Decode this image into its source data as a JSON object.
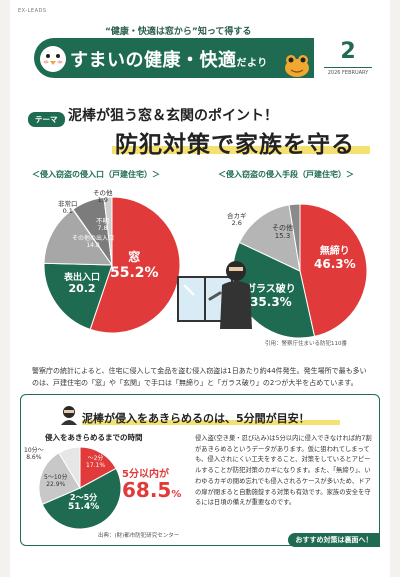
{
  "header": {
    "brand": "EX-LEADS",
    "subtitle": "“健康・快適は窓から”知って得する",
    "title_main": "すまいの健康・快適",
    "title_suffix": "だより",
    "issue_number": "2",
    "issue_date": "2026 FEBRUARY",
    "colors": {
      "green": "#1e6b52",
      "red": "#e03a3a",
      "yellow": "#f2d94e"
    }
  },
  "theme": {
    "badge": "テーマ",
    "headline": "泥棒が狙う窓＆玄関のポイント！",
    "main_title": "防犯対策で家族を守る"
  },
  "chart_data": [
    {
      "type": "pie",
      "title": "＜侵入窃盗の侵入口（戸建住宅）＞",
      "categories": [
        "窓",
        "表出入口",
        "その他の出入口",
        "非常口",
        "不明",
        "その他"
      ],
      "values": [
        55.2,
        20.2,
        14.8,
        0.1,
        7.8,
        1.9
      ]
    },
    {
      "type": "pie",
      "title": "＜侵入窃盗の侵入手段（戸建住宅）＞",
      "categories": [
        "無締り",
        "ガラス破り",
        "その他",
        "合カギ"
      ],
      "values": [
        46.3,
        35.3,
        15.3,
        2.6
      ]
    },
    {
      "type": "pie",
      "title": "侵入をあきらめるまでの時間",
      "categories": [
        "〜2分",
        "2〜5分",
        "5〜10分",
        "10分〜"
      ],
      "values": [
        17.1,
        51.4,
        22.9,
        8.6
      ]
    }
  ],
  "charts": {
    "pie1_labels": [
      {
        "name": "窓",
        "value": "55.2%"
      },
      {
        "name": "表出入口",
        "value": "20.2"
      },
      {
        "name": "その他の出入口",
        "value": "14.8"
      },
      {
        "name": "非常口",
        "value": "0.1"
      },
      {
        "name": "不明",
        "value": "7.8"
      },
      {
        "name": "その他",
        "value": "1.9"
      }
    ],
    "pie2_labels": [
      {
        "name": "無締り",
        "value": "46.3%"
      },
      {
        "name": "ガラス破り",
        "value": "35.3%"
      },
      {
        "name": "その他",
        "value": "15.3"
      },
      {
        "name": "合カギ",
        "value": "2.6"
      }
    ],
    "pie3_labels": [
      {
        "name": "〜2分",
        "value": "17.1%"
      },
      {
        "name": "2〜5分",
        "value": "51.4%"
      },
      {
        "name": "5〜10分",
        "value": "22.9%"
      },
      {
        "name": "10分〜",
        "value": "8.6%"
      }
    ],
    "citation1": "引用：警察庁住まいる防犯110番"
  },
  "body_text": "警察庁の統計によると、住宅に侵入して金品を盗む侵入窃盗は1日あたり約44件発生。発生場所で最も多いのは、戸建住宅の「窓」や「玄関」で手口は「無締り」と「ガラス破り」の2つが大半を占めています。",
  "box": {
    "title": "泥棒が侵入をあきらめるのは、5分間が目安！",
    "graph_title": "侵入をあきらめるまでの時間",
    "highlight_label": "5分以内が",
    "highlight_value": "68.5",
    "highlight_unit": "%",
    "citation": "出典：(財)都市防犯研究センター",
    "text": "侵入盗(空き巣・忍び込み)は5分以内に侵入できなければ約7割があきらめるというデータがあります。仮に狙われてしまっても、侵入されにくい工夫をすること、対策をしているとアピールすることが防犯対策のカギになります。また、「無締り」、いわゆるカギの閉め忘れでも侵入されるケースが多いため、ドアの扉が閉まると自動施錠する対策も有効です。家族の安全を守るには日頃の備えが重要なのです。",
    "button": "おすすめ対策は裏面へ！"
  }
}
